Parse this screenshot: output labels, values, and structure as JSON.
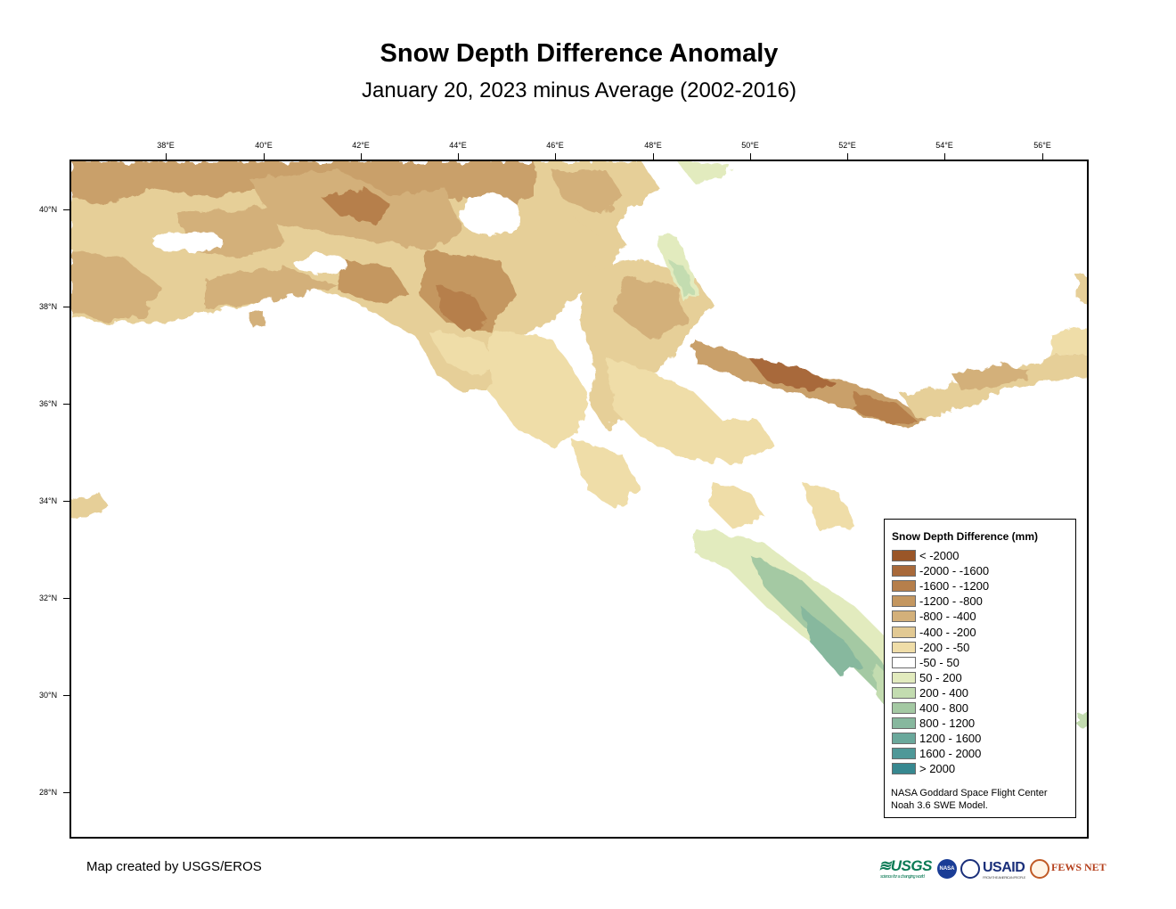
{
  "title": "Snow Depth Difference Anomaly",
  "subtitle": "January 20, 2023 minus Average (2002-2016)",
  "longitude_labels": [
    "38°E",
    "40°E",
    "42°E",
    "44°E",
    "46°E",
    "48°E",
    "50°E",
    "52°E",
    "54°E",
    "56°E"
  ],
  "latitude_labels": [
    "40°N",
    "38°N",
    "36°N",
    "34°N",
    "32°N",
    "30°N",
    "28°N"
  ],
  "legend": {
    "title": "Snow Depth Difference (mm)",
    "classes": [
      {
        "label": "< -2000",
        "color": "#9a5628"
      },
      {
        "label": "-2000 - -1600",
        "color": "#a8693a"
      },
      {
        "label": "-1600 - -1200",
        "color": "#b67f4b"
      },
      {
        "label": "-1200 - -800",
        "color": "#c49760"
      },
      {
        "label": "-800 - -400",
        "color": "#d3b07a"
      },
      {
        "label": "-400 - -200",
        "color": "#e2c993"
      },
      {
        "label": "-200 - -50",
        "color": "#efdda8"
      },
      {
        "label": "-50 - 50",
        "color": "#ffffff"
      },
      {
        "label": "50 - 200",
        "color": "#e2ebbe"
      },
      {
        "label": "200 - 400",
        "color": "#c3dcb0"
      },
      {
        "label": "400 - 800",
        "color": "#a4c9a3"
      },
      {
        "label": "800 - 1200",
        "color": "#87b89e"
      },
      {
        "label": "1200 - 1600",
        "color": "#6aa89b"
      },
      {
        "label": "1600 - 2000",
        "color": "#4f9898"
      },
      {
        "label": "> 2000",
        "color": "#378890"
      }
    ],
    "credit_line1": "NASA Goddard Space Flight Center",
    "credit_line2": "Noah 3.6 SWE Model."
  },
  "credit": "Map created by USGS/EROS",
  "logos": {
    "usgs": "≋USGS",
    "usgs_tagline": "science for a changing world",
    "nasa": "NASA",
    "usaid": "USAID",
    "usaid_tagline": "FROM THE AMERICAN PEOPLE",
    "fews": "FEWS NET"
  }
}
